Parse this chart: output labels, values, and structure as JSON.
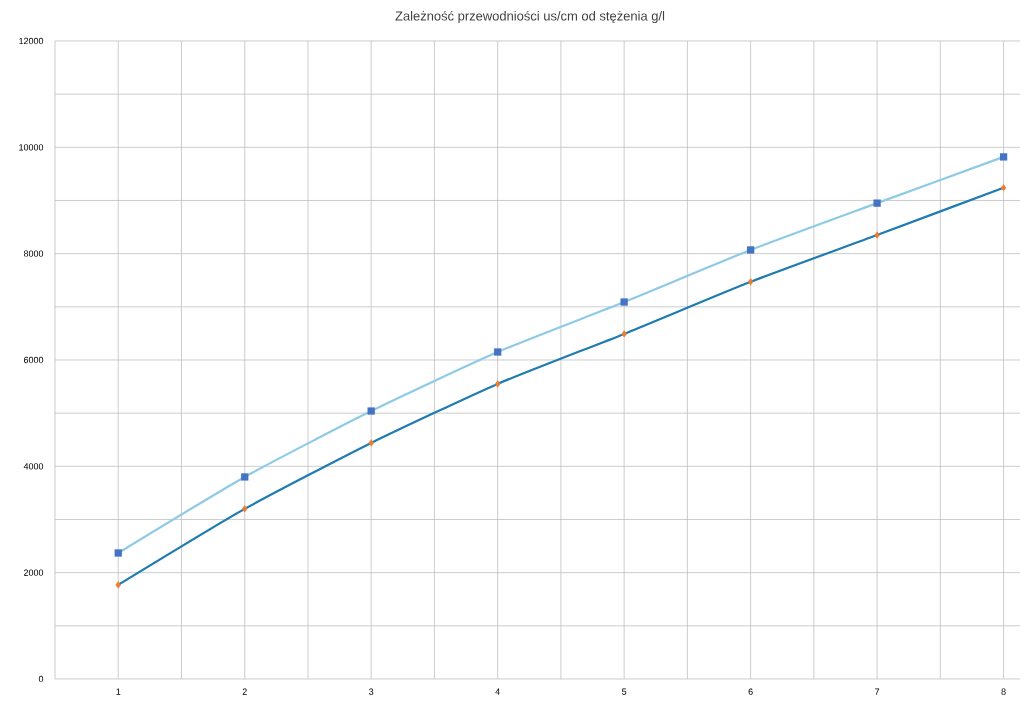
{
  "chart_data": {
    "type": "line",
    "title": "Zależność przewodniości us/cm od stężenia g/l",
    "x": [
      1,
      2,
      3,
      4,
      5,
      6,
      7,
      8
    ],
    "series": [
      {
        "color": "#8ecae6",
        "colors": [
          "#4472c4",
          "#4472c4",
          "#4472c4",
          "#4472c4",
          "#4472c4",
          "#4472c4",
          "#4472c4",
          "#4472c4"
        ],
        "marker": "square",
        "values": [
          2370,
          3800,
          5040,
          6150,
          7090,
          8070,
          8950,
          9820
        ]
      },
      {
        "color": "#1f7bb0",
        "colors": [
          "#ed7d31",
          "#ed7d31",
          "#ed7d31",
          "#ed7d31",
          "#ed7d31",
          "#ed7d31",
          "#ed7d31",
          "#ed7d31"
        ],
        "marker": "diamond",
        "values": [
          1770,
          3200,
          4440,
          5550,
          6490,
          7470,
          8350,
          9240
        ]
      }
    ],
    "xlim": [
      0.5,
      8.13
    ],
    "xticks": [
      {
        "value": 0.5,
        "label": null
      },
      1,
      {
        "value": 1.5,
        "label": null
      },
      2,
      {
        "value": 2.5,
        "label": null
      },
      3,
      {
        "value": 3.5,
        "label": null
      },
      4,
      {
        "value": 4.5,
        "label": null
      },
      5,
      {
        "value": 5.5,
        "label": null
      },
      6,
      {
        "value": 6.5,
        "label": null
      },
      7,
      {
        "value": 7.5,
        "label": null
      },
      8
    ],
    "ylim": [
      0,
      12000
    ],
    "yticks": [
      0,
      {
        "value": 1000,
        "label": null
      },
      2000,
      {
        "value": 3000,
        "label": null
      },
      4000,
      {
        "value": 5000,
        "label": null
      },
      6000,
      {
        "value": 7000,
        "label": null
      },
      8000,
      {
        "value": 9000,
        "label": null
      },
      10000,
      {
        "value": 11000,
        "label": null
      },
      12000
    ],
    "grid": true,
    "line_style": "solid"
  }
}
